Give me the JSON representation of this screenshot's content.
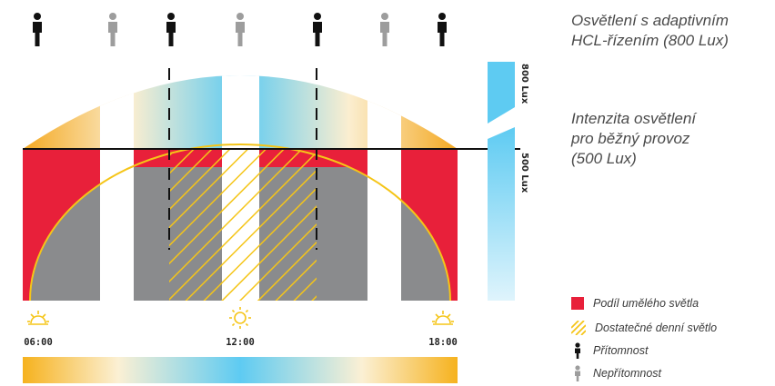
{
  "notes": {
    "adaptive_line1": "Osvětlení s adaptivním",
    "adaptive_line2": "HCL-řízením (800 Lux)",
    "normal_line1": "Intenzita osvětlení",
    "normal_line2": "pro běžný provoz",
    "normal_line3": "(500 Lux)"
  },
  "scale": {
    "label_800": "800 Lux",
    "label_500": "500 Lux"
  },
  "times": [
    "06:00",
    "12:00",
    "18:00"
  ],
  "legend": {
    "artificial": "Podíl umělého světla",
    "daylight": "Dostatečné denní světlo",
    "presence": "Přítomnost",
    "absence": "Nepřítomnost"
  },
  "occupancy": [
    "present",
    "absent",
    "present",
    "absent",
    "present",
    "absent",
    "present"
  ],
  "colors": {
    "artificial_red": "#e8203a",
    "daylight_yellow": "#f5c518",
    "gray": "#8a8b8d",
    "sky_blue": "#5ecbf2",
    "warm_orange": "#f4a922",
    "present": "#111111",
    "absent": "#9d9d9d"
  }
}
